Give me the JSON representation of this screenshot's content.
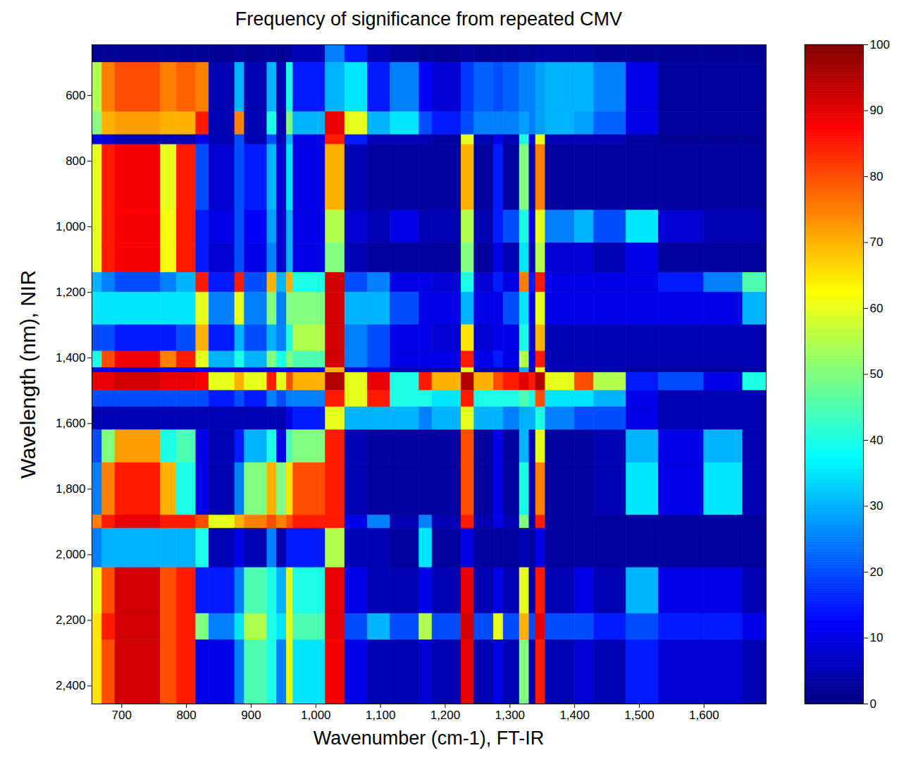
{
  "chart_data": {
    "type": "heatmap",
    "title": "Frequency of significance from repeated CMV",
    "x_label": "Wavenumber (cm-1), FT-IR",
    "y_label": "Wavelength (nm), NIR",
    "xlim": [
      654,
      1696
    ],
    "ylim": [
      445,
      2455
    ],
    "xticks": [
      700,
      800,
      900,
      1000,
      1100,
      1200,
      1300,
      1400,
      1500,
      1600
    ],
    "yticks": [
      600,
      800,
      1000,
      1200,
      1400,
      1600,
      1800,
      2000,
      2200,
      2400
    ],
    "color": "jet",
    "legend": "right",
    "clim": [
      0,
      100
    ],
    "cticks": [
      0,
      10,
      20,
      30,
      40,
      50,
      60,
      70,
      80,
      90,
      100
    ],
    "x_edges": [
      654,
      670,
      690,
      760,
      785,
      815,
      835,
      875,
      890,
      925,
      940,
      955,
      965,
      1015,
      1045,
      1080,
      1115,
      1160,
      1180,
      1225,
      1245,
      1275,
      1290,
      1315,
      1330,
      1340,
      1355,
      1400,
      1430,
      1480,
      1530,
      1600,
      1660,
      1696
    ],
    "y_edges": [
      445,
      500,
      650,
      720,
      750,
      950,
      1050,
      1140,
      1200,
      1300,
      1380,
      1430,
      1445,
      1500,
      1550,
      1620,
      1720,
      1880,
      1920,
      2040,
      2180,
      2260,
      2455
    ],
    "values": [
      [
        2,
        2,
        2,
        2,
        2,
        2,
        2,
        3,
        2,
        3,
        2,
        3,
        5,
        25,
        15,
        5,
        3,
        2,
        2,
        3,
        2,
        2,
        2,
        3,
        2,
        3,
        3,
        3,
        2,
        2,
        2,
        2,
        2
      ],
      [
        55,
        75,
        80,
        75,
        78,
        75,
        5,
        30,
        5,
        30,
        5,
        40,
        15,
        30,
        35,
        15,
        25,
        12,
        8,
        18,
        22,
        20,
        22,
        25,
        25,
        28,
        30,
        30,
        25,
        10,
        3,
        3,
        3
      ],
      [
        50,
        70,
        72,
        70,
        70,
        85,
        5,
        75,
        5,
        40,
        5,
        50,
        30,
        90,
        60,
        30,
        35,
        20,
        15,
        20,
        25,
        25,
        25,
        28,
        25,
        28,
        30,
        28,
        22,
        10,
        3,
        3,
        3
      ],
      [
        10,
        8,
        5,
        5,
        5,
        10,
        5,
        20,
        5,
        20,
        5,
        30,
        10,
        85,
        15,
        5,
        5,
        5,
        3,
        60,
        5,
        10,
        5,
        40,
        10,
        60,
        5,
        5,
        5,
        3,
        2,
        2,
        2
      ],
      [
        60,
        85,
        88,
        60,
        85,
        20,
        8,
        20,
        15,
        30,
        8,
        35,
        10,
        70,
        5,
        3,
        3,
        3,
        3,
        70,
        3,
        15,
        3,
        50,
        5,
        75,
        3,
        3,
        3,
        3,
        3,
        3,
        3
      ],
      [
        60,
        85,
        88,
        62,
        85,
        15,
        10,
        20,
        12,
        28,
        8,
        30,
        10,
        55,
        8,
        5,
        10,
        5,
        5,
        55,
        5,
        15,
        20,
        40,
        10,
        60,
        25,
        30,
        20,
        35,
        8,
        5,
        5
      ],
      [
        60,
        85,
        88,
        62,
        85,
        15,
        8,
        20,
        10,
        25,
        8,
        30,
        10,
        50,
        5,
        3,
        3,
        3,
        3,
        50,
        3,
        10,
        5,
        35,
        5,
        55,
        8,
        8,
        5,
        10,
        3,
        3,
        3
      ],
      [
        30,
        25,
        20,
        25,
        30,
        85,
        15,
        85,
        20,
        70,
        30,
        70,
        40,
        92,
        20,
        25,
        10,
        10,
        8,
        40,
        8,
        15,
        10,
        75,
        15,
        85,
        10,
        10,
        10,
        10,
        15,
        25,
        45
      ],
      [
        35,
        35,
        35,
        35,
        35,
        60,
        25,
        60,
        25,
        50,
        25,
        50,
        50,
        92,
        30,
        30,
        20,
        10,
        10,
        30,
        10,
        10,
        20,
        35,
        10,
        60,
        10,
        10,
        10,
        10,
        10,
        10,
        30
      ],
      [
        20,
        20,
        15,
        15,
        20,
        70,
        15,
        30,
        20,
        30,
        25,
        40,
        55,
        92,
        25,
        20,
        10,
        10,
        8,
        65,
        8,
        10,
        10,
        40,
        8,
        70,
        5,
        5,
        5,
        5,
        5,
        5,
        5
      ],
      [
        40,
        80,
        88,
        75,
        85,
        60,
        30,
        40,
        30,
        50,
        40,
        50,
        45,
        92,
        25,
        20,
        10,
        10,
        10,
        85,
        10,
        15,
        10,
        55,
        10,
        85,
        5,
        5,
        5,
        5,
        5,
        5,
        5
      ],
      [
        10,
        10,
        10,
        10,
        10,
        10,
        10,
        10,
        10,
        10,
        10,
        10,
        10,
        70,
        10,
        10,
        5,
        5,
        5,
        60,
        5,
        5,
        5,
        30,
        5,
        60,
        5,
        5,
        5,
        3,
        3,
        3,
        3
      ],
      [
        90,
        90,
        92,
        90,
        90,
        88,
        60,
        70,
        60,
        85,
        60,
        80,
        70,
        95,
        60,
        90,
        40,
        85,
        70,
        95,
        70,
        80,
        85,
        90,
        85,
        95,
        60,
        80,
        55,
        15,
        20,
        10,
        40
      ],
      [
        20,
        20,
        20,
        20,
        20,
        20,
        15,
        20,
        15,
        25,
        20,
        25,
        25,
        85,
        60,
        85,
        40,
        40,
        35,
        85,
        40,
        40,
        40,
        45,
        40,
        80,
        35,
        35,
        30,
        10,
        5,
        5,
        5
      ],
      [
        5,
        5,
        5,
        5,
        5,
        5,
        5,
        5,
        5,
        5,
        5,
        10,
        15,
        60,
        30,
        30,
        30,
        25,
        30,
        60,
        30,
        30,
        25,
        30,
        30,
        40,
        25,
        20,
        20,
        10,
        5,
        5,
        5
      ],
      [
        20,
        50,
        72,
        40,
        45,
        10,
        5,
        15,
        30,
        40,
        10,
        45,
        50,
        85,
        5,
        3,
        3,
        3,
        3,
        80,
        3,
        10,
        3,
        30,
        5,
        60,
        3,
        3,
        5,
        30,
        10,
        30,
        5
      ],
      [
        25,
        75,
        85,
        70,
        40,
        10,
        5,
        25,
        50,
        70,
        50,
        65,
        80,
        85,
        5,
        3,
        3,
        3,
        3,
        80,
        3,
        10,
        3,
        40,
        5,
        75,
        3,
        3,
        5,
        35,
        10,
        35,
        5
      ],
      [
        75,
        85,
        90,
        85,
        85,
        80,
        60,
        70,
        75,
        80,
        75,
        80,
        85,
        85,
        10,
        25,
        5,
        25,
        5,
        85,
        5,
        10,
        5,
        50,
        5,
        85,
        3,
        3,
        3,
        3,
        3,
        3,
        3
      ],
      [
        25,
        30,
        30,
        30,
        30,
        40,
        5,
        10,
        5,
        25,
        5,
        15,
        15,
        55,
        5,
        5,
        3,
        35,
        3,
        10,
        3,
        3,
        3,
        5,
        3,
        10,
        3,
        3,
        3,
        3,
        3,
        3,
        3
      ],
      [
        60,
        80,
        92,
        80,
        85,
        15,
        15,
        25,
        45,
        40,
        30,
        60,
        40,
        90,
        10,
        5,
        5,
        10,
        5,
        90,
        5,
        10,
        5,
        60,
        5,
        85,
        5,
        10,
        5,
        30,
        10,
        10,
        5
      ],
      [
        65,
        85,
        92,
        80,
        85,
        50,
        25,
        35,
        55,
        40,
        35,
        60,
        45,
        90,
        20,
        30,
        20,
        55,
        20,
        92,
        20,
        60,
        20,
        70,
        20,
        90,
        20,
        20,
        15,
        20,
        15,
        15,
        10
      ],
      [
        65,
        80,
        92,
        80,
        85,
        10,
        10,
        25,
        45,
        40,
        25,
        60,
        35,
        88,
        10,
        5,
        5,
        8,
        5,
        90,
        5,
        10,
        5,
        50,
        5,
        85,
        5,
        8,
        5,
        15,
        8,
        8,
        5
      ]
    ]
  }
}
